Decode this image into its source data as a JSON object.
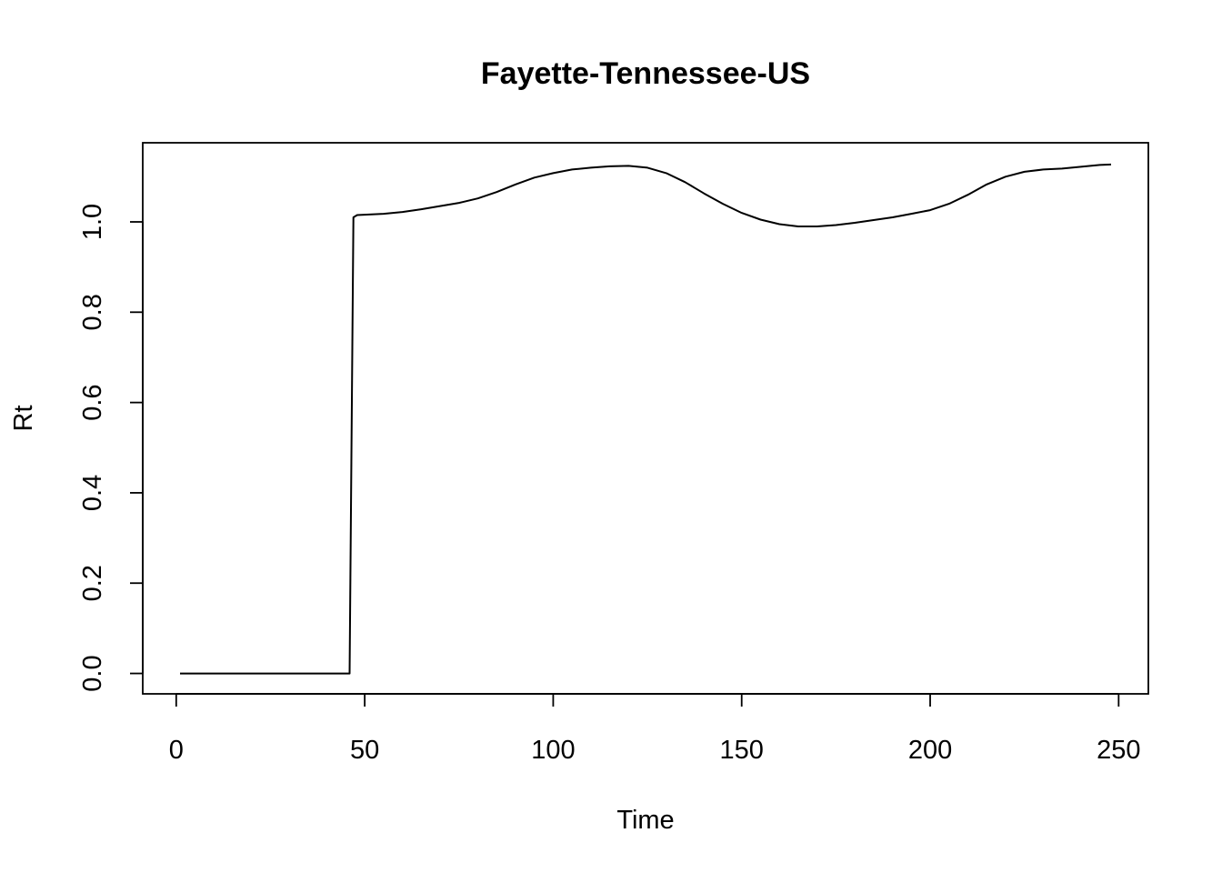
{
  "chart_data": {
    "type": "line",
    "title": "Fayette-Tennessee-US",
    "xlabel": "Time",
    "ylabel": "Rt",
    "xlim": [
      1,
      248
    ],
    "ylim": [
      0,
      1.13
    ],
    "xticks": [
      0,
      50,
      100,
      150,
      200,
      250
    ],
    "yticks": [
      0.0,
      0.2,
      0.4,
      0.6,
      0.8,
      1.0
    ],
    "xtick_labels": [
      "0",
      "50",
      "100",
      "150",
      "200",
      "250"
    ],
    "ytick_labels": [
      "0.0",
      "0.2",
      "0.4",
      "0.6",
      "0.8",
      "1.0"
    ],
    "grid": false,
    "legend": "none",
    "series": [
      {
        "color": "#000000",
        "x": [
          1,
          46,
          47,
          48,
          55,
          60,
          65,
          70,
          75,
          80,
          85,
          90,
          95,
          100,
          105,
          110,
          115,
          120,
          125,
          130,
          135,
          140,
          145,
          150,
          155,
          160,
          165,
          170,
          175,
          180,
          185,
          190,
          195,
          200,
          205,
          210,
          215,
          220,
          225,
          230,
          235,
          240,
          245,
          248
        ],
        "y": [
          0,
          0,
          1.01,
          1.015,
          1.018,
          1.022,
          1.028,
          1.035,
          1.042,
          1.052,
          1.066,
          1.083,
          1.098,
          1.108,
          1.116,
          1.12,
          1.123,
          1.124,
          1.12,
          1.108,
          1.088,
          1.063,
          1.04,
          1.02,
          1.005,
          0.995,
          0.99,
          0.99,
          0.993,
          0.998,
          1.004,
          1.01,
          1.018,
          1.026,
          1.04,
          1.06,
          1.083,
          1.1,
          1.111,
          1.116,
          1.118,
          1.122,
          1.126,
          1.127
        ]
      }
    ]
  }
}
